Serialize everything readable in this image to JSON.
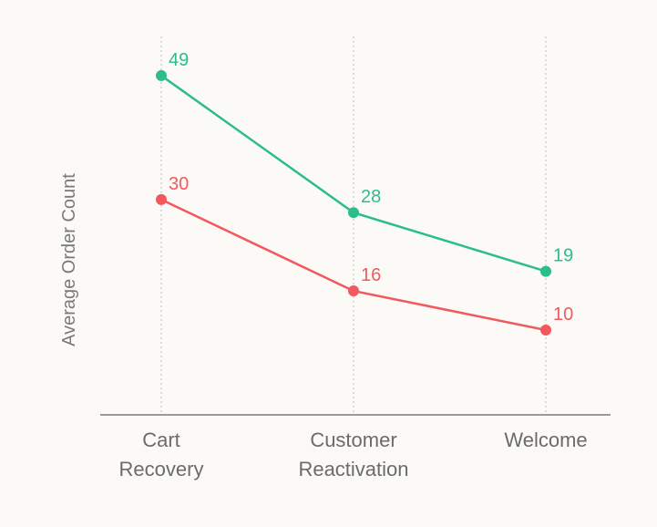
{
  "chart_data": {
    "type": "line",
    "ylabel": "Average Order Count",
    "xlabel": "",
    "categories": [
      [
        "Cart",
        "Recovery"
      ],
      [
        "Customer",
        "Reactivation"
      ],
      [
        "Welcome"
      ]
    ],
    "series": [
      {
        "color": "#2dbd8a",
        "values": [
          49,
          28,
          19
        ]
      },
      {
        "color": "#f2585e",
        "values": [
          30,
          16,
          10
        ]
      }
    ],
    "ylim": [
      -3,
      55
    ],
    "grid": "vertical-dotted",
    "data_labels": true
  }
}
